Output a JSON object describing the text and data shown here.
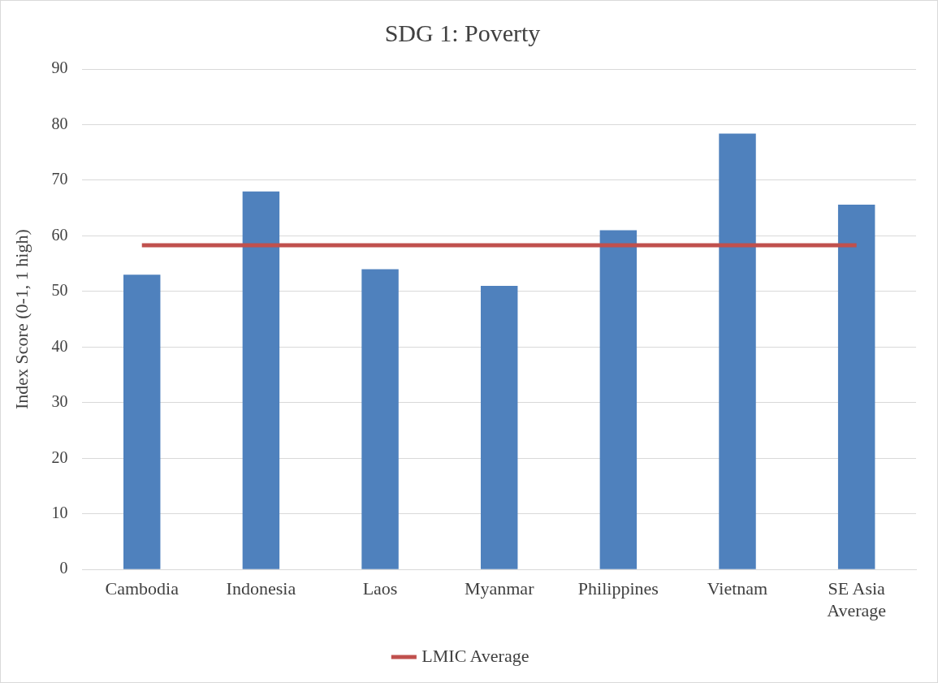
{
  "chart_data": {
    "type": "bar",
    "title": "SDG 1: Poverty",
    "ylabel": "Index Score (0-1, 1 high)",
    "categories": [
      "Cambodia",
      "Indonesia",
      "Laos",
      "Myanmar",
      "Philippines",
      "Vietnam",
      "SE Asia Average"
    ],
    "series": [
      {
        "color": "#4f81bd",
        "values": [
          53,
          68,
          54,
          51,
          61,
          78.4,
          65.6
        ]
      },
      {
        "type": "line",
        "name": "LMIC Average",
        "color": "#c0504d",
        "values": [
          58.3,
          58.3,
          58.3,
          58.3,
          58.3,
          58.3,
          58.3
        ]
      }
    ],
    "ylim": [
      0,
      90
    ],
    "yticks": [
      0,
      10,
      20,
      30,
      40,
      50,
      60,
      70,
      80,
      90
    ],
    "grid": "y",
    "legend": "bottom",
    "marker": "none"
  }
}
